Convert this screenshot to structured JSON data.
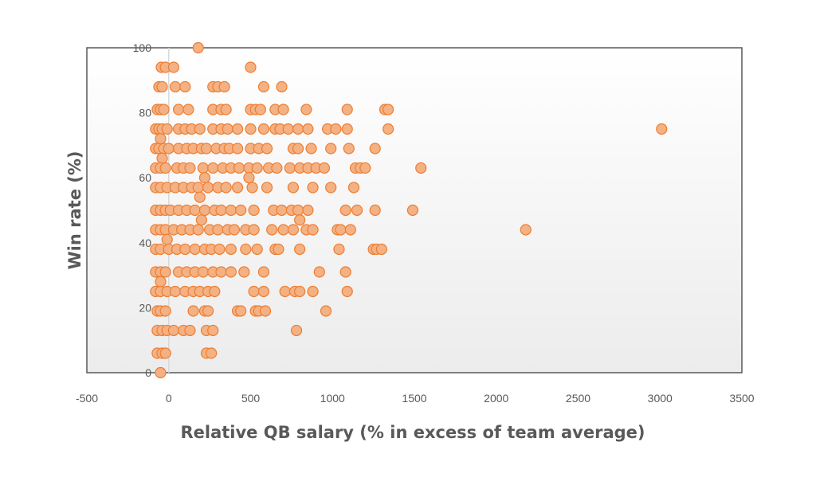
{
  "chart_data": {
    "type": "scatter",
    "title": "",
    "xlabel": "Relative QB salary (% in excess of team average)",
    "ylabel": "Win rate (%)",
    "xlim": [
      -500,
      3500
    ],
    "ylim": [
      0,
      100
    ],
    "x_ticks": [
      -500,
      0,
      500,
      1000,
      1500,
      2000,
      2500,
      3000,
      3500
    ],
    "y_ticks": [
      0,
      20,
      40,
      60,
      80,
      100
    ],
    "grid": false,
    "legend": "none",
    "colors": {
      "marker_fill": "#f4b183",
      "marker_stroke": "#ed7d31",
      "zero_line": "#d9d9d9",
      "plot_border": "#595959"
    },
    "series": [
      {
        "points": [
          [
            180,
            100
          ],
          [
            -45,
            94
          ],
          [
            -20,
            94
          ],
          [
            30,
            94
          ],
          [
            500,
            94
          ],
          [
            -60,
            88
          ],
          [
            -40,
            88
          ],
          [
            40,
            88
          ],
          [
            100,
            88
          ],
          [
            270,
            88
          ],
          [
            300,
            88
          ],
          [
            340,
            88
          ],
          [
            580,
            88
          ],
          [
            690,
            88
          ],
          [
            -70,
            81
          ],
          [
            -50,
            81
          ],
          [
            -30,
            81
          ],
          [
            60,
            81
          ],
          [
            120,
            81
          ],
          [
            270,
            81
          ],
          [
            320,
            81
          ],
          [
            350,
            81
          ],
          [
            500,
            81
          ],
          [
            530,
            81
          ],
          [
            560,
            81
          ],
          [
            650,
            81
          ],
          [
            700,
            81
          ],
          [
            840,
            81
          ],
          [
            1090,
            81
          ],
          [
            1320,
            81
          ],
          [
            1340,
            81
          ],
          [
            -80,
            75
          ],
          [
            -60,
            75
          ],
          [
            -40,
            75
          ],
          [
            -10,
            75
          ],
          [
            60,
            75
          ],
          [
            100,
            75
          ],
          [
            140,
            75
          ],
          [
            190,
            75
          ],
          [
            270,
            75
          ],
          [
            320,
            75
          ],
          [
            360,
            75
          ],
          [
            420,
            75
          ],
          [
            500,
            75
          ],
          [
            580,
            75
          ],
          [
            650,
            75
          ],
          [
            680,
            75
          ],
          [
            730,
            75
          ],
          [
            790,
            75
          ],
          [
            850,
            75
          ],
          [
            970,
            75
          ],
          [
            1020,
            75
          ],
          [
            1090,
            75
          ],
          [
            1340,
            75
          ],
          [
            3010,
            75
          ],
          [
            -50,
            72
          ],
          [
            -80,
            69
          ],
          [
            -60,
            69
          ],
          [
            -30,
            69
          ],
          [
            0,
            69
          ],
          [
            60,
            69
          ],
          [
            110,
            69
          ],
          [
            150,
            69
          ],
          [
            200,
            69
          ],
          [
            230,
            69
          ],
          [
            290,
            69
          ],
          [
            340,
            69
          ],
          [
            370,
            69
          ],
          [
            420,
            69
          ],
          [
            500,
            69
          ],
          [
            550,
            69
          ],
          [
            600,
            69
          ],
          [
            760,
            69
          ],
          [
            790,
            69
          ],
          [
            870,
            69
          ],
          [
            990,
            69
          ],
          [
            1100,
            69
          ],
          [
            1260,
            69
          ],
          [
            -40,
            66
          ],
          [
            -80,
            63
          ],
          [
            -50,
            63
          ],
          [
            -20,
            63
          ],
          [
            50,
            63
          ],
          [
            90,
            63
          ],
          [
            130,
            63
          ],
          [
            210,
            63
          ],
          [
            270,
            63
          ],
          [
            330,
            63
          ],
          [
            380,
            63
          ],
          [
            430,
            63
          ],
          [
            490,
            63
          ],
          [
            540,
            63
          ],
          [
            610,
            63
          ],
          [
            660,
            63
          ],
          [
            740,
            63
          ],
          [
            800,
            63
          ],
          [
            850,
            63
          ],
          [
            900,
            63
          ],
          [
            950,
            63
          ],
          [
            1140,
            63
          ],
          [
            1170,
            63
          ],
          [
            1200,
            63
          ],
          [
            1540,
            63
          ],
          [
            220,
            60
          ],
          [
            490,
            60
          ],
          [
            -80,
            57
          ],
          [
            -50,
            57
          ],
          [
            -10,
            57
          ],
          [
            40,
            57
          ],
          [
            90,
            57
          ],
          [
            140,
            57
          ],
          [
            180,
            57
          ],
          [
            240,
            57
          ],
          [
            300,
            57
          ],
          [
            350,
            57
          ],
          [
            420,
            57
          ],
          [
            510,
            57
          ],
          [
            600,
            57
          ],
          [
            760,
            57
          ],
          [
            880,
            57
          ],
          [
            990,
            57
          ],
          [
            1130,
            57
          ],
          [
            190,
            54
          ],
          [
            -80,
            50
          ],
          [
            -50,
            50
          ],
          [
            -20,
            50
          ],
          [
            10,
            50
          ],
          [
            60,
            50
          ],
          [
            110,
            50
          ],
          [
            160,
            50
          ],
          [
            220,
            50
          ],
          [
            280,
            50
          ],
          [
            320,
            50
          ],
          [
            380,
            50
          ],
          [
            440,
            50
          ],
          [
            520,
            50
          ],
          [
            640,
            50
          ],
          [
            690,
            50
          ],
          [
            750,
            50
          ],
          [
            790,
            50
          ],
          [
            850,
            50
          ],
          [
            1080,
            50
          ],
          [
            1150,
            50
          ],
          [
            1260,
            50
          ],
          [
            1490,
            50
          ],
          [
            200,
            47
          ],
          [
            800,
            47
          ],
          [
            -80,
            44
          ],
          [
            -50,
            44
          ],
          [
            -20,
            44
          ],
          [
            30,
            44
          ],
          [
            80,
            44
          ],
          [
            130,
            44
          ],
          [
            180,
            44
          ],
          [
            250,
            44
          ],
          [
            300,
            44
          ],
          [
            360,
            44
          ],
          [
            400,
            44
          ],
          [
            470,
            44
          ],
          [
            520,
            44
          ],
          [
            630,
            44
          ],
          [
            700,
            44
          ],
          [
            760,
            44
          ],
          [
            840,
            44
          ],
          [
            880,
            44
          ],
          [
            1030,
            44
          ],
          [
            1050,
            44
          ],
          [
            1110,
            44
          ],
          [
            2180,
            44
          ],
          [
            -10,
            41
          ],
          [
            -80,
            38
          ],
          [
            -50,
            38
          ],
          [
            0,
            38
          ],
          [
            50,
            38
          ],
          [
            100,
            38
          ],
          [
            160,
            38
          ],
          [
            220,
            38
          ],
          [
            260,
            38
          ],
          [
            310,
            38
          ],
          [
            380,
            38
          ],
          [
            470,
            38
          ],
          [
            540,
            38
          ],
          [
            650,
            38
          ],
          [
            670,
            38
          ],
          [
            800,
            38
          ],
          [
            1040,
            38
          ],
          [
            1250,
            38
          ],
          [
            1270,
            38
          ],
          [
            1300,
            38
          ],
          [
            -80,
            31
          ],
          [
            -50,
            31
          ],
          [
            -20,
            31
          ],
          [
            60,
            31
          ],
          [
            110,
            31
          ],
          [
            160,
            31
          ],
          [
            210,
            31
          ],
          [
            270,
            31
          ],
          [
            320,
            31
          ],
          [
            380,
            31
          ],
          [
            460,
            31
          ],
          [
            580,
            31
          ],
          [
            920,
            31
          ],
          [
            1080,
            31
          ],
          [
            -50,
            28
          ],
          [
            -80,
            25
          ],
          [
            -50,
            25
          ],
          [
            -10,
            25
          ],
          [
            40,
            25
          ],
          [
            100,
            25
          ],
          [
            150,
            25
          ],
          [
            190,
            25
          ],
          [
            240,
            25
          ],
          [
            280,
            25
          ],
          [
            520,
            25
          ],
          [
            580,
            25
          ],
          [
            710,
            25
          ],
          [
            770,
            25
          ],
          [
            800,
            25
          ],
          [
            880,
            25
          ],
          [
            1090,
            25
          ],
          [
            -70,
            19
          ],
          [
            -50,
            19
          ],
          [
            -20,
            19
          ],
          [
            150,
            19
          ],
          [
            220,
            19
          ],
          [
            240,
            19
          ],
          [
            420,
            19
          ],
          [
            440,
            19
          ],
          [
            530,
            19
          ],
          [
            550,
            19
          ],
          [
            590,
            19
          ],
          [
            960,
            19
          ],
          [
            -70,
            13
          ],
          [
            -40,
            13
          ],
          [
            -10,
            13
          ],
          [
            30,
            13
          ],
          [
            90,
            13
          ],
          [
            130,
            13
          ],
          [
            230,
            13
          ],
          [
            270,
            13
          ],
          [
            780,
            13
          ],
          [
            -70,
            6
          ],
          [
            -40,
            6
          ],
          [
            -20,
            6
          ],
          [
            230,
            6
          ],
          [
            260,
            6
          ],
          [
            -50,
            0
          ]
        ]
      }
    ]
  }
}
